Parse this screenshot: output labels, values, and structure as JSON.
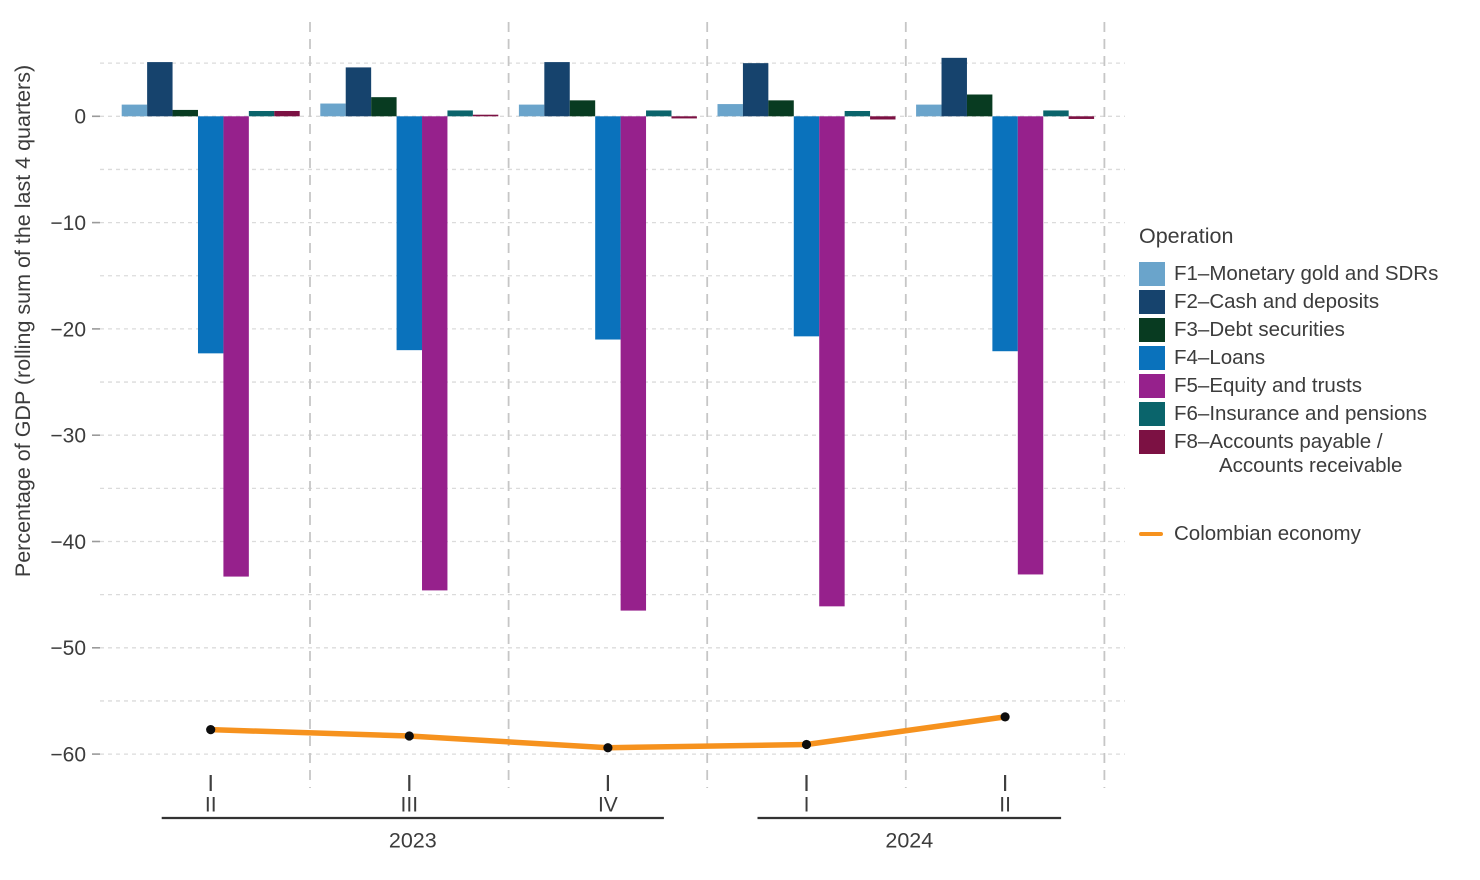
{
  "chart_data": {
    "type": "bar+line",
    "title": "",
    "ylabel": "Percentage of GDP (rolling sum of the last 4 quarters)",
    "categories": [
      "II",
      "III",
      "IV",
      "I",
      "II"
    ],
    "year_groups": [
      {
        "label": "2023",
        "span": [
          0,
          2
        ]
      },
      {
        "label": "2024",
        "span": [
          3,
          4
        ]
      }
    ],
    "ylim": [
      -62,
      8.8
    ],
    "yticks": [
      0,
      -10,
      -20,
      -30,
      -40,
      -50,
      -60
    ],
    "ytick_labels": [
      "0",
      "−10",
      "−20",
      "−30",
      "−40",
      "−50",
      "−60"
    ],
    "grid_step": 5,
    "grid": true,
    "legend": {
      "title": "Operation",
      "position": "right"
    },
    "series": [
      {
        "id": "F1",
        "name": "F1–Monetary gold and SDRs",
        "color": "#6AA4CB",
        "values": [
          1.1,
          1.2,
          1.1,
          1.15,
          1.1
        ]
      },
      {
        "id": "F2",
        "name": "F2–Cash and deposits",
        "color": "#16436D",
        "values": [
          5.1,
          4.6,
          5.1,
          5.0,
          5.5
        ]
      },
      {
        "id": "F3",
        "name": "F3–Debt securities",
        "color": "#083B21",
        "values": [
          0.6,
          1.8,
          1.5,
          1.5,
          2.05
        ]
      },
      {
        "id": "F4",
        "name": "F4–Loans",
        "color": "#0A72BC",
        "values": [
          -22.3,
          -22.0,
          -21.0,
          -20.7,
          -22.1
        ]
      },
      {
        "id": "F5",
        "name": "F5–Equity and trusts",
        "color": "#96218C",
        "values": [
          -43.3,
          -44.6,
          -46.5,
          -46.1,
          -43.1
        ]
      },
      {
        "id": "F6",
        "name": "F6–Insurance and pensions",
        "color": "#0A646B",
        "values": [
          0.5,
          0.55,
          0.55,
          0.5,
          0.55
        ]
      },
      {
        "id": "F8",
        "name": "F8–Accounts payable /\nAccounts receivable",
        "color": "#7C1143",
        "values": [
          0.5,
          0.15,
          -0.2,
          -0.3,
          -0.25
        ]
      }
    ],
    "line_series": {
      "name": "Colombian economy",
      "color": "#F6921E",
      "marker_color": "#0d0d0d",
      "values": [
        -57.7,
        -58.3,
        -59.4,
        -59.1,
        -56.5
      ]
    },
    "style_colors": {
      "text": "#3c3c3c",
      "grid_h": "#dbdbdb",
      "grid_v": "#c6c6c6",
      "tick_y": "#9a9a9a",
      "tick_x": "#3f3f3f",
      "year_line": "#333333"
    }
  }
}
